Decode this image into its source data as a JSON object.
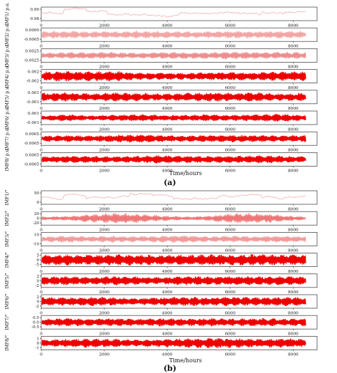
{
  "figure": {
    "panel_a_label": "(a)",
    "panel_b_label": "(b)",
    "xlabel": "Time/hours"
  },
  "chart_data": [
    {
      "type": "line",
      "panel": "(a)",
      "xlabel": "Time/hours",
      "xlim": [
        0,
        8760
      ],
      "x_ticks": [
        "0",
        "2000",
        "4000",
        "6000",
        "8000"
      ],
      "grid": false,
      "rows": [
        {
          "ylabel": "IMF1/ p.u.",
          "ytick_labels": [
            "0.99",
            "0.98"
          ],
          "intensity": 0.25,
          "kind": "slow",
          "envelope": [
            0.6,
            0.9,
            0.7,
            0.5,
            0.4,
            0.4,
            0.5,
            0.5,
            0.6,
            0.5,
            0.6,
            0.7
          ]
        },
        {
          "ylabel": "IMF2/ p.u.",
          "ytick_labels": [
            "0.0000",
            "-0.0005"
          ],
          "intensity": 0.3,
          "kind": "osc",
          "envelope": [
            0.6,
            0.7,
            0.6,
            0.6,
            0.7,
            0.6,
            0.6,
            0.6,
            0.7,
            0.6,
            0.7,
            0.6
          ]
        },
        {
          "ylabel": "IMF3/ p.u.",
          "ytick_labels": [
            "0.0025",
            "-0.0025"
          ],
          "intensity": 0.4,
          "kind": "osc",
          "envelope": [
            0.5,
            0.6,
            0.6,
            0.6,
            0.5,
            0.6,
            0.6,
            0.6,
            0.7,
            0.6,
            0.6,
            0.6
          ]
        },
        {
          "ylabel": "IMF4/ p.u.",
          "ytick_labels": [
            "0.002",
            "-0.002"
          ],
          "intensity": 1.0,
          "kind": "osc",
          "envelope": [
            0.8,
            0.9,
            0.8,
            0.9,
            0.6,
            0.6,
            0.6,
            0.7,
            0.7,
            0.7,
            0.8,
            0.8
          ]
        },
        {
          "ylabel": "IMF5/ p.u.",
          "ytick_labels": [
            "0.001",
            "-0.001"
          ],
          "intensity": 1.0,
          "kind": "osc",
          "envelope": [
            0.7,
            0.8,
            0.6,
            0.8,
            0.7,
            0.6,
            0.7,
            0.8,
            0.7,
            0.8,
            0.6,
            0.7
          ]
        },
        {
          "ylabel": "IMF6/ p.u.",
          "ytick_labels": [
            "0.001",
            "-0.001"
          ],
          "intensity": 1.0,
          "kind": "osc",
          "envelope": [
            0.4,
            0.6,
            0.4,
            0.5,
            0.6,
            0.5,
            0.5,
            0.6,
            0.5,
            0.6,
            0.7,
            0.5
          ]
        },
        {
          "ylabel": "IMF7/ p.u.",
          "ytick_labels": [
            "0.0005",
            "-0.0005"
          ],
          "intensity": 1.0,
          "kind": "osc",
          "envelope": [
            0.5,
            0.6,
            0.5,
            0.6,
            0.7,
            0.6,
            0.5,
            0.6,
            0.6,
            0.6,
            0.5,
            0.6
          ]
        },
        {
          "ylabel": "IMF8/ p.u.",
          "ytick_labels": [
            "0.0005",
            "-0.0005"
          ],
          "intensity": 1.0,
          "kind": "osc",
          "envelope": [
            0.5,
            0.6,
            0.6,
            0.5,
            0.6,
            0.7,
            0.6,
            0.6,
            0.6,
            0.7,
            0.6,
            0.5
          ]
        }
      ]
    },
    {
      "type": "line",
      "panel": "(b)",
      "xlabel": "Time/hours",
      "xlim": [
        0,
        8760
      ],
      "x_ticks": [
        "0",
        "2000",
        "4000",
        "6000",
        "8000"
      ],
      "grid": false,
      "rows": [
        {
          "ylabel": "IMF1/°",
          "ytick_labels": [
            "50",
            "0"
          ],
          "intensity": 0.25,
          "kind": "slow",
          "envelope": [
            0.5,
            0.7,
            0.5,
            0.6,
            0.8,
            0.7,
            0.5,
            0.4,
            0.6,
            0.7,
            0.5,
            0.6
          ]
        },
        {
          "ylabel": "IMF2/°",
          "ytick_labels": [
            "20",
            "0",
            "-20"
          ],
          "intensity": 0.5,
          "kind": "osc",
          "envelope": [
            0.3,
            0.4,
            0.7,
            0.9,
            0.8,
            0.5,
            0.3,
            0.5,
            0.9,
            0.9,
            0.6,
            0.3
          ]
        },
        {
          "ylabel": "IMF3/°",
          "ytick_labels": [
            "10",
            "-10"
          ],
          "intensity": 0.35,
          "kind": "osc",
          "envelope": [
            0.5,
            0.6,
            0.5,
            0.6,
            0.5,
            0.6,
            0.7,
            0.5,
            0.6,
            0.5,
            0.6,
            0.5
          ]
        },
        {
          "ylabel": "IMF4/°",
          "ytick_labels": [
            "5",
            "0",
            "-5"
          ],
          "intensity": 1.0,
          "kind": "osc",
          "envelope": [
            0.9,
            0.95,
            0.9,
            0.95,
            0.9,
            0.85,
            0.9,
            0.95,
            0.9,
            0.95,
            0.9,
            0.9
          ]
        },
        {
          "ylabel": "IMF5/°",
          "ytick_labels": [
            "2",
            "0",
            "-2"
          ],
          "intensity": 1.0,
          "kind": "osc",
          "envelope": [
            0.7,
            0.8,
            0.6,
            0.8,
            0.7,
            0.6,
            0.8,
            0.7,
            0.8,
            0.7,
            0.8,
            0.7
          ]
        },
        {
          "ylabel": "IMF6/°",
          "ytick_labels": [
            "2",
            "0",
            "-2"
          ],
          "intensity": 1.0,
          "kind": "osc",
          "envelope": [
            0.8,
            0.7,
            0.8,
            0.7,
            0.6,
            0.7,
            0.8,
            0.7,
            0.8,
            0.7,
            0.8,
            0.7
          ]
        },
        {
          "ylabel": "IMF7/°",
          "ytick_labels": [
            "0.5",
            "0.0",
            "-0.5"
          ],
          "intensity": 1.0,
          "kind": "osc",
          "envelope": [
            0.6,
            0.7,
            0.6,
            0.7,
            0.6,
            0.7,
            0.6,
            0.7,
            0.6,
            0.7,
            0.6,
            0.7
          ]
        },
        {
          "ylabel": "IMF8/°",
          "ytick_labels": [
            "1",
            "0",
            "-1"
          ],
          "intensity": 1.0,
          "kind": "osc",
          "envelope": [
            0.6,
            0.7,
            0.8,
            0.7,
            0.6,
            0.7,
            0.8,
            0.9,
            0.8,
            0.7,
            0.8,
            0.7
          ]
        }
      ]
    }
  ]
}
